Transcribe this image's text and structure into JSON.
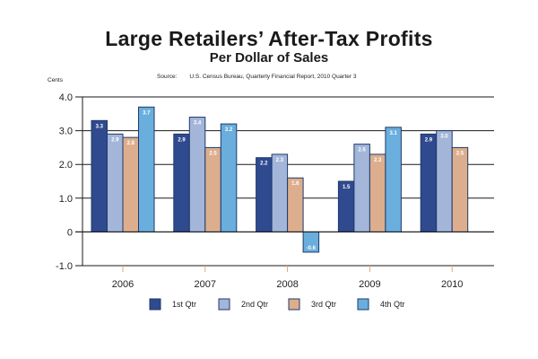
{
  "chart_data": {
    "type": "bar",
    "title": "Large Retailers’ After-Tax Profits",
    "subtitle": "Per Dollar of Sales",
    "source_label": "Source:",
    "source_text": "U.S. Census Bureau, Quarterly Financial Report, 2010 Quarter 3",
    "ylabel": "Cents",
    "xlabel": "",
    "ylim": [
      -1.0,
      4.0
    ],
    "yticks": [
      4.0,
      3.0,
      2.0,
      1.0,
      0,
      -1.0
    ],
    "ytick_labels": [
      "4.0",
      "3.0",
      "2.0",
      "1.0",
      "0",
      "-1.0"
    ],
    "grid": true,
    "legend_position": "bottom",
    "categories": [
      "2006",
      "2007",
      "2008",
      "2009",
      "2010"
    ],
    "series": [
      {
        "name": "1st Qtr",
        "color": "#2f4a8f",
        "values": [
          3.3,
          2.9,
          2.2,
          1.5,
          2.9
        ],
        "labels": [
          "3.3",
          "2.9",
          "2.2",
          "1.5",
          "2.9"
        ]
      },
      {
        "name": "2nd Qtr",
        "color": "#a3b5d9",
        "values": [
          2.9,
          3.4,
          2.3,
          2.6,
          3.0
        ],
        "labels": [
          "2.9",
          "3.4",
          "2.3",
          "2.6",
          "3.0"
        ]
      },
      {
        "name": "3rd Qtr",
        "color": "#ddae8d",
        "values": [
          2.8,
          2.5,
          1.6,
          2.3,
          2.5
        ],
        "labels": [
          "2.8",
          "2.5",
          "1.6",
          "2.3",
          "2.5"
        ]
      },
      {
        "name": "4th Qtr",
        "color": "#6aaedd",
        "values": [
          3.7,
          3.2,
          -0.6,
          3.1,
          null
        ],
        "labels": [
          "3.7",
          "3.2",
          "-0.6",
          "3.1",
          null
        ]
      }
    ],
    "bar_border_color": "#1f3a6a",
    "axis_color": "#1a1a1a",
    "category_tick_color": "#d9a877"
  }
}
